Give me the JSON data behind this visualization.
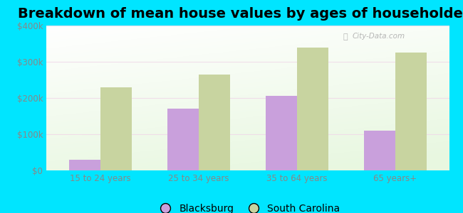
{
  "title": "Breakdown of mean house values by ages of householders",
  "categories": [
    "15 to 24 years",
    "25 to 34 years",
    "35 to 64 years",
    "65 years+"
  ],
  "blacksburg_values": [
    30000,
    170000,
    205000,
    110000
  ],
  "sc_values": [
    230000,
    265000,
    340000,
    325000
  ],
  "blacksburg_color": "#c9a0dc",
  "sc_color": "#c8d4a0",
  "background_color": "#00e5ff",
  "ylim": [
    0,
    400000
  ],
  "yticks": [
    0,
    100000,
    200000,
    300000,
    400000
  ],
  "ytick_labels": [
    "$0",
    "$100k",
    "$200k",
    "$300k",
    "$400k"
  ],
  "legend_labels": [
    "Blacksburg",
    "South Carolina"
  ],
  "title_fontsize": 14,
  "watermark_text": "City-Data.com",
  "grid_color": "#e8f5e0",
  "tick_color": "#888888"
}
